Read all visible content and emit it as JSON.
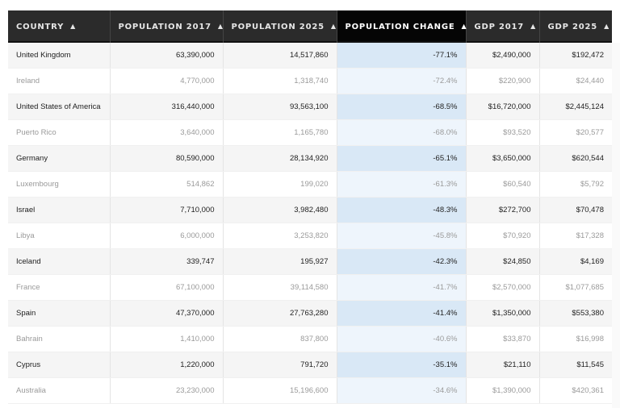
{
  "table": {
    "headers": [
      {
        "label": "COUNTRY",
        "sort_icon": "caret-up-icon"
      },
      {
        "label": "POPULATION 2017",
        "sort_icon": "caret-up-icon"
      },
      {
        "label": "POPULATION 2025",
        "sort_icon": "caret-up-icon"
      },
      {
        "label": "POPULATION CHANGE",
        "sort_icon": "caret-up-icon",
        "active": true
      },
      {
        "label": "GDP 2017",
        "sort_icon": "caret-up-icon"
      },
      {
        "label": "GDP 2025",
        "sort_icon": "caret-up-icon"
      }
    ],
    "caret": "▲",
    "rows": [
      [
        "United Kingdom",
        "63,390,000",
        "14,517,860",
        "-77.1%",
        "$2,490,000",
        "$192,472"
      ],
      [
        "Ireland",
        "4,770,000",
        "1,318,740",
        "-72.4%",
        "$220,900",
        "$24,440"
      ],
      [
        "United States of America",
        "316,440,000",
        "93,563,100",
        "-68.5%",
        "$16,720,000",
        "$2,445,124"
      ],
      [
        "Puerto Rico",
        "3,640,000",
        "1,165,780",
        "-68.0%",
        "$93,520",
        "$20,577"
      ],
      [
        "Germany",
        "80,590,000",
        "28,134,920",
        "-65.1%",
        "$3,650,000",
        "$620,544"
      ],
      [
        "Luxembourg",
        "514,862",
        "199,020",
        "-61.3%",
        "$60,540",
        "$5,792"
      ],
      [
        "Israel",
        "7,710,000",
        "3,982,480",
        "-48.3%",
        "$272,700",
        "$70,478"
      ],
      [
        "Libya",
        "6,000,000",
        "3,253,820",
        "-45.8%",
        "$70,920",
        "$17,328"
      ],
      [
        "Iceland",
        "339,747",
        "195,927",
        "-42.3%",
        "$24,850",
        "$4,169"
      ],
      [
        "France",
        "67,100,000",
        "39,114,580",
        "-41.7%",
        "$2,570,000",
        "$1,077,685"
      ],
      [
        "Spain",
        "47,370,000",
        "27,763,280",
        "-41.4%",
        "$1,350,000",
        "$553,380"
      ],
      [
        "Bahrain",
        "1,410,000",
        "837,800",
        "-40.6%",
        "$33,870",
        "$16,998"
      ],
      [
        "Cyprus",
        "1,220,000",
        "791,720",
        "-35.1%",
        "$21,110",
        "$11,545"
      ],
      [
        "Australia",
        "23,230,000",
        "15,196,600",
        "-34.6%",
        "$1,390,000",
        "$420,361"
      ]
    ]
  },
  "colors": {
    "header_bg": "#2b2b2b",
    "active_header_bg": "#050505",
    "sorted_col_odd": "#d9e8f6",
    "sorted_col_even": "#eef5fc"
  }
}
